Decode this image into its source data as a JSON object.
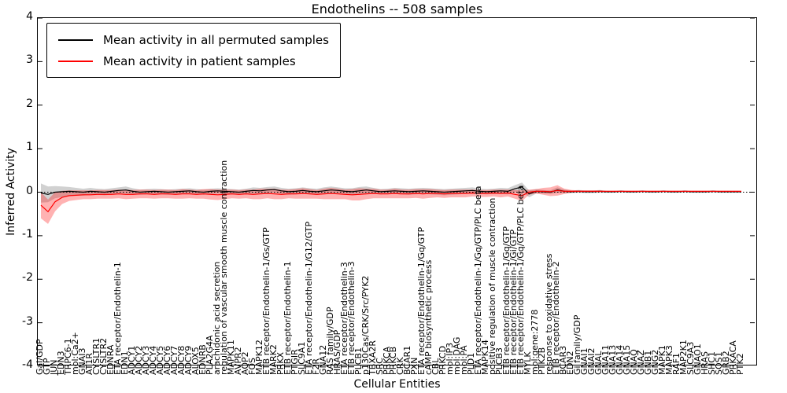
{
  "chart_data": {
    "type": "line",
    "title": "Endothelins -- 508 samples",
    "xlabel": "Cellular Entities",
    "ylabel": "Inferred Activity",
    "ylim": [
      -4,
      4
    ],
    "yticks": [
      -4,
      -3,
      -2,
      -1,
      0,
      1,
      2,
      3,
      4
    ],
    "grid": false,
    "legend_position": "upper left",
    "zero_line_style": "dotted",
    "categories": [
      "Gai/GDP",
      "GTP",
      "JUN",
      "EDN3",
      "TRPC6-1",
      "mol:Ca2+",
      "GNAI3",
      "AT1R",
      "CYSLTR1",
      "CYSLTR2",
      "EDNRA",
      "ETA receptor/Endothelin-1",
      "EDN1",
      "ADCY1",
      "ADCY2",
      "ADCY3",
      "ADCY4",
      "ADCY5",
      "ADCY6",
      "ADCY7",
      "ADCY8",
      "ADCY9",
      "ALOX5",
      "EDNRB",
      "PLA2G4A",
      "arachidonic acid secretion",
      "regulation of vascular smooth muscle contraction",
      "MAPK11",
      "AVPR2",
      "AQP2",
      "FOS",
      "MAPK12",
      "ETB receptor/Endothelin-1/Gs/GTP",
      "MARK2",
      "PRKX",
      "ETB receptor/Endothelin-1",
      "PTGIR",
      "SLC9A1",
      "ETA receptor/Endothelin-1/G12/GTP",
      "F2R",
      "GNA12",
      "RAS family/GDP",
      "HRAS/GDP",
      "ETA receptor/Endothelin-3",
      "ETB receptor/Endothelin-3",
      "PLCB1",
      "p130Cas/CRK/Src/PYK2",
      "TBXA2R",
      "SRC",
      "PRKCA",
      "PRKCB",
      "CRK",
      "BCAR1",
      "PXN",
      "ETA receptor/Endothelin-1/Gq/GTP",
      "cAMP biosynthetic process",
      "CBL",
      "PRKCD",
      "mol:IP3",
      "mol:DAG",
      "mol:PA",
      "PLD1",
      "ETA receptor/Endothelin-1/Gq/GTP/PLC beta",
      "MAPK14",
      "positive regulation of muscle contraction",
      "PLCB3",
      "ETB receptor/Endothelin-1/Gq/GTP",
      "ETB receptor/Endothelin-1/Gi/GTP",
      "ETB receptor/Endothelin-1/Gq/GTP/PLC beta",
      "MYLK",
      "mol:gene:2778",
      "PTK2B",
      "response to oxidative stress",
      "ETB receptor/Endothelin-2",
      "BCAR3",
      "EDN2",
      "Gi family/GDP",
      "GNAI1",
      "GNAI2",
      "GNAL",
      "GNA11",
      "GNA13",
      "GNA14",
      "GNA15",
      "GNAQ",
      "GNAZ",
      "GNB1",
      "GNG2",
      "MAPK1",
      "MAPK3",
      "RAF1",
      "MAP2K1",
      "SLC9A3",
      "GNAO1",
      "HRAS",
      "SHC1",
      "SOS1",
      "GRB2",
      "PRKACA",
      "PTK2"
    ],
    "series": [
      {
        "name": "Mean activity in all permuted samples",
        "color": "#000000",
        "band_color": "#999999",
        "values": [
          -0.02,
          -0.05,
          0.0,
          0.01,
          0.02,
          0.01,
          0.0,
          0.02,
          0.01,
          0.0,
          0.02,
          0.04,
          0.05,
          0.02,
          0.0,
          0.01,
          0.02,
          0.01,
          0.0,
          0.01,
          0.02,
          0.03,
          0.01,
          0.0,
          0.02,
          0.03,
          0.02,
          0.01,
          0.0,
          0.02,
          0.04,
          0.03,
          0.05,
          0.06,
          0.03,
          0.01,
          0.02,
          0.04,
          0.02,
          0.01,
          0.03,
          0.05,
          0.04,
          0.02,
          0.01,
          0.03,
          0.05,
          0.03,
          0.01,
          0.02,
          0.03,
          0.02,
          0.01,
          0.02,
          0.03,
          0.02,
          0.01,
          0.0,
          0.01,
          0.02,
          0.03,
          0.04,
          0.02,
          0.01,
          0.02,
          0.03,
          0.02,
          0.08,
          0.12,
          -0.04,
          0.02,
          0.01,
          0.0,
          0.05,
          0.02,
          0.01,
          0.02,
          0.01,
          0.01,
          0.02,
          0.01,
          0.01,
          0.02,
          0.01,
          0.01,
          0.02,
          0.01,
          0.01,
          0.02,
          0.01,
          0.01,
          0.02,
          0.01,
          0.01,
          0.01,
          0.02,
          0.01,
          0.01,
          0.01,
          0.01
        ],
        "band": [
          0.22,
          0.18,
          0.14,
          0.12,
          0.1,
          0.09,
          0.08,
          0.08,
          0.07,
          0.07,
          0.07,
          0.07,
          0.08,
          0.07,
          0.06,
          0.06,
          0.06,
          0.06,
          0.06,
          0.06,
          0.06,
          0.06,
          0.06,
          0.06,
          0.06,
          0.06,
          0.06,
          0.06,
          0.06,
          0.06,
          0.07,
          0.07,
          0.07,
          0.07,
          0.07,
          0.07,
          0.07,
          0.07,
          0.07,
          0.07,
          0.08,
          0.08,
          0.07,
          0.07,
          0.08,
          0.09,
          0.08,
          0.07,
          0.06,
          0.06,
          0.07,
          0.07,
          0.07,
          0.07,
          0.07,
          0.07,
          0.07,
          0.07,
          0.07,
          0.07,
          0.07,
          0.07,
          0.06,
          0.06,
          0.06,
          0.07,
          0.07,
          0.08,
          0.1,
          0.08,
          0.05,
          0.04,
          0.04,
          0.06,
          0.04,
          0.03,
          0.03,
          0.03,
          0.03,
          0.03,
          0.02,
          0.02,
          0.02,
          0.02,
          0.02,
          0.02,
          0.02,
          0.02,
          0.02,
          0.02,
          0.02,
          0.02,
          0.02,
          0.02,
          0.02,
          0.02,
          0.02,
          0.02,
          0.02,
          0.02
        ]
      },
      {
        "name": "Mean activity in patient samples",
        "color": "#ff0000",
        "band_color": "#ff0000",
        "values": [
          -0.3,
          -0.45,
          -0.22,
          -0.12,
          -0.08,
          -0.07,
          -0.06,
          -0.06,
          -0.05,
          -0.05,
          -0.05,
          -0.04,
          -0.05,
          -0.05,
          -0.04,
          -0.04,
          -0.05,
          -0.04,
          -0.04,
          -0.05,
          -0.04,
          -0.04,
          -0.05,
          -0.04,
          -0.05,
          -0.06,
          -0.05,
          -0.04,
          -0.05,
          -0.04,
          -0.05,
          -0.04,
          -0.03,
          -0.04,
          -0.05,
          -0.04,
          -0.04,
          -0.03,
          -0.04,
          -0.05,
          -0.04,
          -0.03,
          -0.04,
          -0.05,
          -0.06,
          -0.05,
          -0.04,
          -0.03,
          -0.04,
          -0.04,
          -0.03,
          -0.04,
          -0.04,
          -0.03,
          -0.04,
          -0.03,
          -0.03,
          -0.04,
          -0.03,
          -0.03,
          -0.03,
          -0.02,
          -0.03,
          -0.03,
          -0.02,
          -0.03,
          -0.02,
          -0.05,
          -0.08,
          0.0,
          0.02,
          0.02,
          0.01,
          0.04,
          0.02,
          0.02,
          0.02,
          0.02,
          0.02,
          0.02,
          0.02,
          0.02,
          0.02,
          0.02,
          0.02,
          0.02,
          0.02,
          0.02,
          0.02,
          0.02,
          0.02,
          0.02,
          0.02,
          0.02,
          0.02,
          0.02,
          0.02,
          0.02,
          0.02,
          0.02
        ],
        "band": [
          0.3,
          0.28,
          0.22,
          0.15,
          0.12,
          0.11,
          0.1,
          0.1,
          0.1,
          0.1,
          0.1,
          0.1,
          0.11,
          0.1,
          0.1,
          0.1,
          0.1,
          0.1,
          0.1,
          0.1,
          0.11,
          0.1,
          0.1,
          0.11,
          0.12,
          0.12,
          0.11,
          0.1,
          0.1,
          0.1,
          0.11,
          0.12,
          0.11,
          0.12,
          0.11,
          0.1,
          0.11,
          0.12,
          0.11,
          0.1,
          0.12,
          0.13,
          0.12,
          0.11,
          0.13,
          0.14,
          0.12,
          0.11,
          0.1,
          0.1,
          0.11,
          0.1,
          0.1,
          0.1,
          0.11,
          0.1,
          0.09,
          0.09,
          0.09,
          0.09,
          0.09,
          0.08,
          0.08,
          0.08,
          0.08,
          0.09,
          0.08,
          0.1,
          0.12,
          0.06,
          0.05,
          0.08,
          0.1,
          0.12,
          0.06,
          0.03,
          0.02,
          0.02,
          0.02,
          0.02,
          0.01,
          0.01,
          0.01,
          0.01,
          0.01,
          0.01,
          0.01,
          0.01,
          0.01,
          0.01,
          0.01,
          0.01,
          0.01,
          0.01,
          0.01,
          0.01,
          0.01,
          0.01,
          0.01,
          0.01
        ]
      }
    ]
  }
}
